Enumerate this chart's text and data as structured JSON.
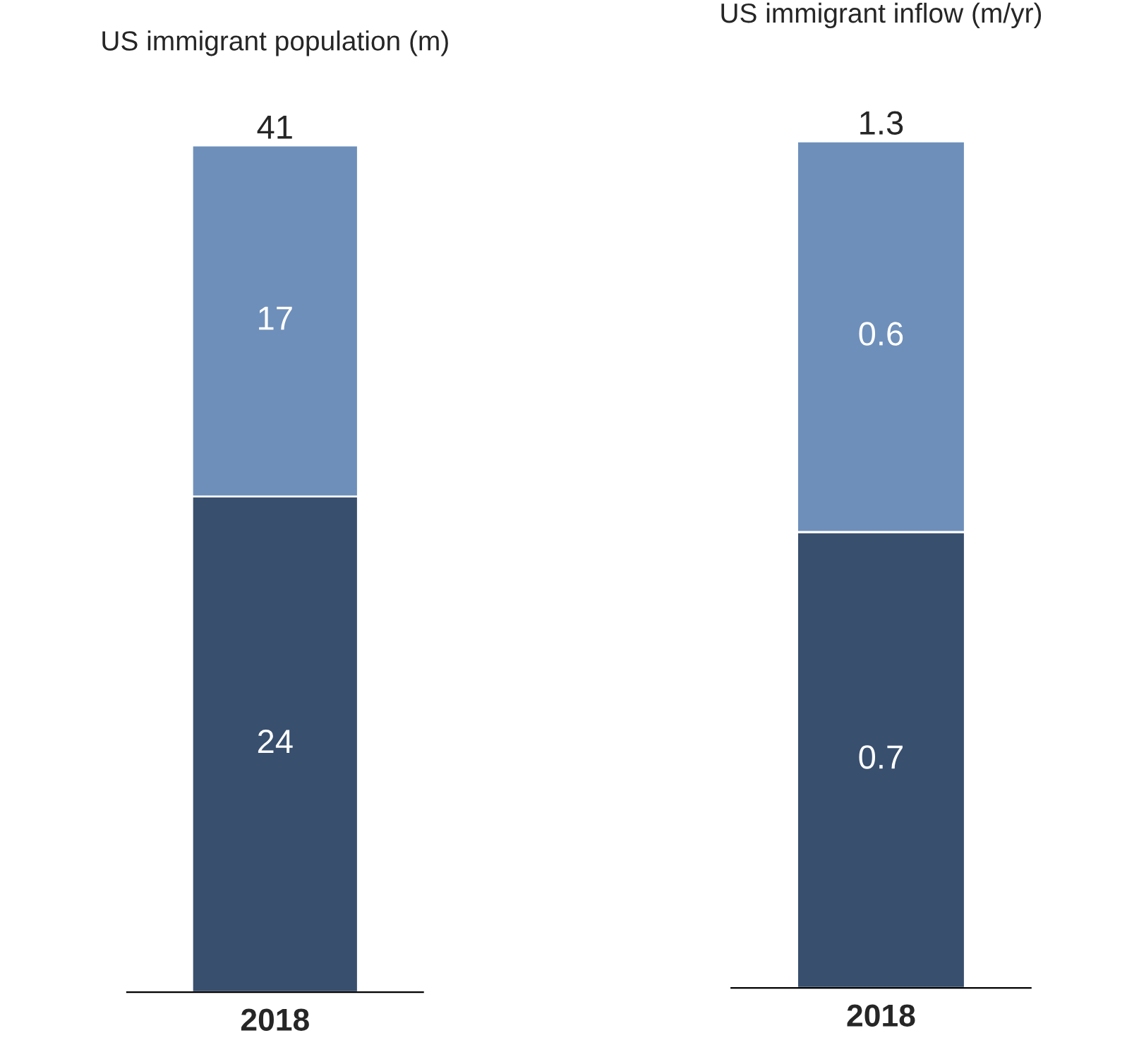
{
  "chart_data": [
    {
      "type": "bar",
      "title": "US immigrant population (m)",
      "categories": [
        "2018"
      ],
      "stacked": true,
      "data_labels": true,
      "totals": [
        "41"
      ],
      "series": [
        {
          "color": "#384f6e",
          "values": [
            24
          ]
        },
        {
          "color": "#6e8fba",
          "values": [
            17
          ]
        }
      ]
    },
    {
      "type": "bar",
      "title": "US immigrant inflow (m/yr)",
      "categories": [
        "2018"
      ],
      "stacked": true,
      "data_labels": true,
      "totals": [
        "1.3"
      ],
      "series": [
        {
          "color": "#384f6e",
          "values": [
            0.7
          ]
        },
        {
          "color": "#6e8fba",
          "values": [
            0.6
          ]
        }
      ]
    }
  ]
}
